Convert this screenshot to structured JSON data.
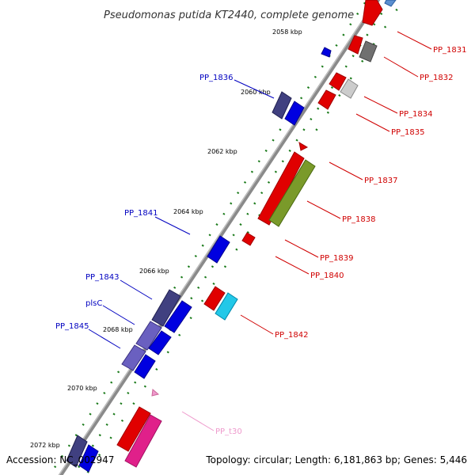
{
  "title": "Pseudomonas putida KT2440, complete genome",
  "accession": "Accession: NC_002947",
  "summary": "Topology: circular; Length: 6,181,863 bp; Genes: 5,446",
  "colors": {
    "backbone": "#888888",
    "tick_dot": "#1a7a1a",
    "forward_label": "#d00000",
    "reverse_label": "#0000c0",
    "trna_label": "#ee99cc"
  },
  "ruler": [
    {
      "label": "2058 kbp"
    },
    {
      "label": "2060 kbp"
    },
    {
      "label": "2062 kbp"
    },
    {
      "label": "2064 kbp"
    },
    {
      "label": "2066 kbp"
    },
    {
      "label": "2068 kbp"
    },
    {
      "label": "2070 kbp"
    },
    {
      "label": "2072 kbp"
    }
  ],
  "labels": {
    "PP_1831": "PP_1831",
    "PP_1832": "PP_1832",
    "PP_1834": "PP_1834",
    "PP_1835": "PP_1835",
    "PP_1837": "PP_1837",
    "PP_1838": "PP_1838",
    "PP_1839": "PP_1839",
    "PP_1840": "PP_1840",
    "PP_1842": "PP_1842",
    "PP_t30": "PP_t30",
    "PP_1836": "PP_1836",
    "PP_1841": "PP_1841",
    "PP_1843": "PP_1843",
    "plsC": "plsC",
    "PP_1845": "PP_1845"
  }
}
